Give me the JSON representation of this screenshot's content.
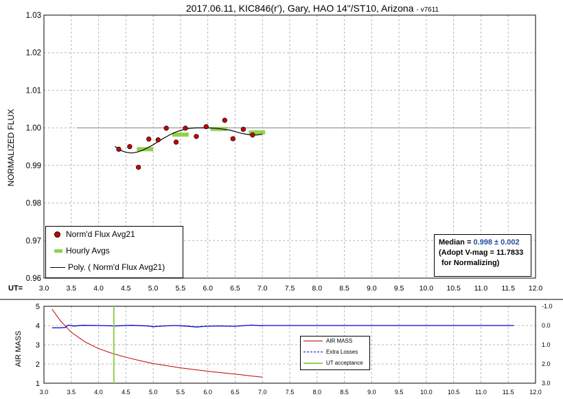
{
  "chart_data": [
    {
      "type": "scatter",
      "title": "2017.06.11, KIC846(r'), Gary, HAO 14\"/ST10, Arizona",
      "version": "- v7611",
      "ylabel": "NORMALIZED FLUX",
      "xlabel": "UT=",
      "xlim": [
        3.0,
        12.0
      ],
      "ylim": [
        0.96,
        1.03
      ],
      "x_ticks": [
        "3.0",
        "3.5",
        "4.0",
        "4.5",
        "5.0",
        "5.5",
        "6.0",
        "6.5",
        "7.0",
        "7.5",
        "8.0",
        "8.5",
        "9.0",
        "9.5",
        "10.0",
        "10.5",
        "11.0",
        "11.5",
        "12.0"
      ],
      "y_ticks": [
        "0.96",
        "0.97",
        "0.98",
        "0.99",
        "1.00",
        "1.01",
        "1.02",
        "1.03"
      ],
      "grid": true,
      "reference_line": {
        "y": 1.0,
        "x_range": [
          3.6,
          11.9
        ],
        "color": "#999999"
      },
      "series": [
        {
          "name": "Norm'd Flux Avg21",
          "color": "#cc0000",
          "points": [
            [
              4.37,
              0.9943
            ],
            [
              4.57,
              0.995
            ],
            [
              4.73,
              0.9895
            ],
            [
              4.92,
              0.997
            ],
            [
              5.09,
              0.9968
            ],
            [
              5.24,
              0.9999
            ],
            [
              5.42,
              0.9962
            ],
            [
              5.59,
              0.9999
            ],
            [
              5.79,
              0.9977
            ],
            [
              5.97,
              1.0003
            ],
            [
              6.31,
              1.002
            ],
            [
              6.46,
              0.9971
            ],
            [
              6.65,
              0.9996
            ],
            [
              6.82,
              0.9981
            ]
          ]
        },
        {
          "name": "Hourly Avgs",
          "color": "#92d050",
          "segments": [
            {
              "x0": 4.7,
              "x1": 5.0,
              "y": 0.9943
            },
            {
              "x0": 5.35,
              "x1": 5.65,
              "y": 0.9982
            },
            {
              "x0": 6.05,
              "x1": 6.35,
              "y": 0.9997
            },
            {
              "x0": 6.75,
              "x1": 7.05,
              "y": 0.9988
            }
          ]
        },
        {
          "name": "Poly. ( Norm'd Flux Avg21)",
          "color": "#000000",
          "points": [
            [
              4.3,
              0.9951
            ],
            [
              4.4,
              0.994
            ],
            [
              4.5,
              0.9935
            ],
            [
              4.6,
              0.9933
            ],
            [
              4.7,
              0.9935
            ],
            [
              4.8,
              0.994
            ],
            [
              4.9,
              0.9947
            ],
            [
              5.0,
              0.9955
            ],
            [
              5.1,
              0.9964
            ],
            [
              5.2,
              0.9973
            ],
            [
              5.3,
              0.9981
            ],
            [
              5.4,
              0.9988
            ],
            [
              5.5,
              0.9993
            ],
            [
              5.6,
              0.9997
            ],
            [
              5.7,
              0.9999
            ],
            [
              5.8,
              1.0
            ],
            [
              5.9,
              1.0
            ],
            [
              6.0,
              1.0
            ],
            [
              6.1,
              0.9999
            ],
            [
              6.2,
              0.9998
            ],
            [
              6.3,
              0.9996
            ],
            [
              6.4,
              0.9994
            ],
            [
              6.5,
              0.999
            ],
            [
              6.6,
              0.9986
            ],
            [
              6.7,
              0.9983
            ],
            [
              6.8,
              0.9981
            ],
            [
              6.9,
              0.9981
            ],
            [
              7.0,
              0.9983
            ]
          ]
        }
      ],
      "legend_position": "bottom-left",
      "annotation": {
        "median_prefix": "Median = ",
        "median_value": "0.998 ± 0.002",
        "line2": "(Adopt V-mag = 11.7833",
        "line3": "for Normalizing)"
      }
    },
    {
      "type": "line",
      "ylabel": "AIR MASS",
      "xlim": [
        3.0,
        12.0
      ],
      "ylim": [
        1,
        5
      ],
      "y2lim": [
        -1.0,
        3.0
      ],
      "x_ticks": [
        "3.0",
        "3.5",
        "4.0",
        "4.5",
        "5.0",
        "5.5",
        "6.0",
        "6.5",
        "7.0",
        "7.5",
        "8.0",
        "8.5",
        "9.0",
        "9.5",
        "10.0",
        "10.5",
        "11.0",
        "11.5",
        "12.0"
      ],
      "y_ticks": [
        "1",
        "2",
        "3",
        "4",
        "5"
      ],
      "y2_ticks": [
        "-1.0",
        "0.0",
        "1.0",
        "2.0",
        "3.0"
      ],
      "series": [
        {
          "name": "AIR MASS",
          "color": "#c00000",
          "points": [
            [
              3.15,
              4.85
            ],
            [
              3.3,
              4.25
            ],
            [
              3.5,
              3.65
            ],
            [
              3.75,
              3.15
            ],
            [
              4.0,
              2.8
            ],
            [
              4.25,
              2.55
            ],
            [
              4.5,
              2.35
            ],
            [
              4.75,
              2.18
            ],
            [
              5.0,
              2.02
            ],
            [
              5.5,
              1.8
            ],
            [
              6.0,
              1.62
            ],
            [
              6.5,
              1.47
            ],
            [
              7.0,
              1.31
            ]
          ]
        },
        {
          "name": "Extra Losses",
          "color": "#0000cc",
          "axis": "right",
          "points": [
            [
              3.15,
              0.12
            ],
            [
              3.3,
              0.12
            ],
            [
              3.4,
              0.1
            ],
            [
              3.42,
              0.02
            ],
            [
              3.45,
              -0.02
            ],
            [
              3.55,
              0.03
            ],
            [
              3.7,
              -0.01
            ],
            [
              4.0,
              0.0
            ],
            [
              4.3,
              0.02
            ],
            [
              4.6,
              -0.01
            ],
            [
              4.9,
              0.02
            ],
            [
              5.0,
              0.06
            ],
            [
              5.2,
              0.02
            ],
            [
              5.4,
              0.0
            ],
            [
              5.6,
              0.03
            ],
            [
              5.8,
              0.08
            ],
            [
              5.95,
              0.04
            ],
            [
              6.2,
              0.02
            ],
            [
              6.5,
              0.04
            ],
            [
              6.8,
              -0.02
            ],
            [
              7.0,
              0.01
            ],
            [
              7.02,
              0.0
            ],
            [
              11.6,
              0.0
            ]
          ]
        },
        {
          "name": "UT acceptance",
          "color": "#92d050",
          "x": 4.28
        }
      ],
      "legend_position": "right"
    }
  ]
}
